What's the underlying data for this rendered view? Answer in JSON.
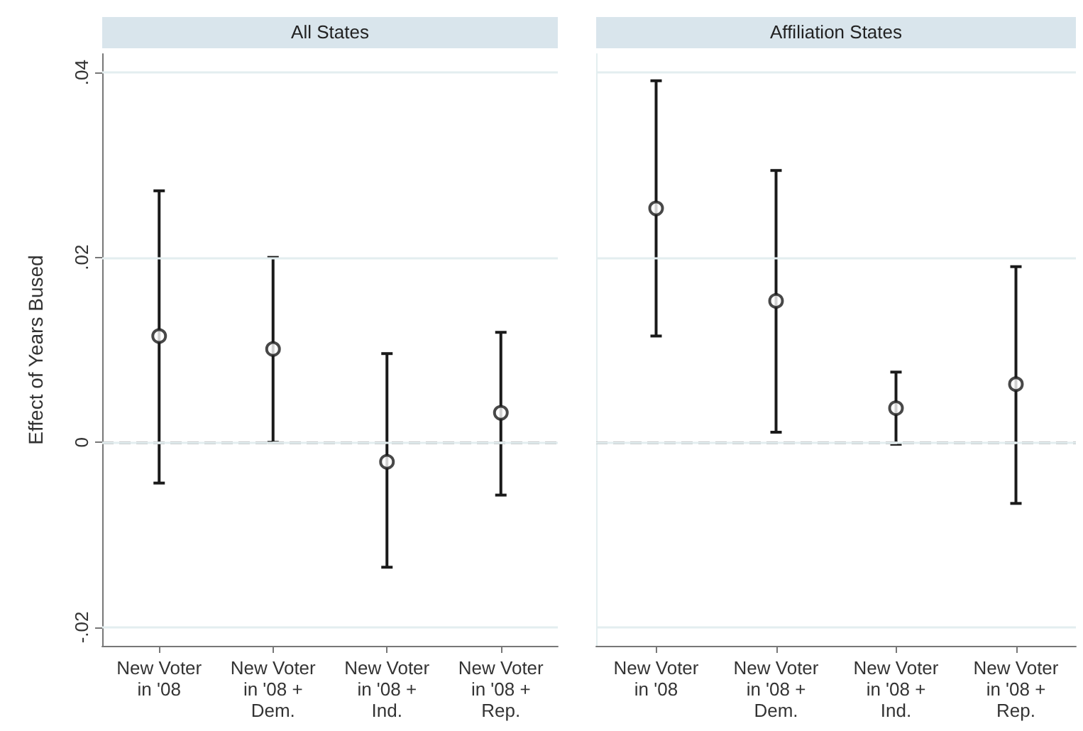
{
  "chart_data": [
    {
      "type": "scatter",
      "title": "All States",
      "ylabel": "Effect of Years Bused",
      "categories": [
        "New Voter\nin '08",
        "New Voter\nin '08 +\nDem.",
        "New Voter\nin '08 +\nInd.",
        "New Voter\nin '08 +\nRep."
      ],
      "series": [
        {
          "color": "#1a1a1a",
          "values": [
            0.0115,
            0.0101,
            -0.0021,
            0.0032
          ],
          "errors": [
            [
              -0.0044,
              0.0272
            ],
            [
              0.0,
              0.02
            ],
            [
              -0.0135,
              0.0096
            ],
            [
              -0.0057,
              0.0119
            ]
          ]
        }
      ],
      "ylim": [
        -0.022,
        0.042
      ],
      "yticks": [
        {
          "value": -0.02,
          "label": "-.02"
        },
        {
          "value": 0,
          "label": "0"
        },
        {
          "value": 0.02,
          "label": ".02"
        },
        {
          "value": 0.04,
          "label": ".04"
        }
      ],
      "grid": "y",
      "marker": "circle",
      "ref_lines": [
        {
          "axis": "y",
          "value": 0,
          "color": "#a6a6a6",
          "line_style": "dashed"
        }
      ]
    },
    {
      "type": "scatter",
      "title": "Affiliation States",
      "categories": [
        "New Voter\nin '08",
        "New Voter\nin '08 +\nDem.",
        "New Voter\nin '08 +\nInd.",
        "New Voter\nin '08 +\nRep."
      ],
      "series": [
        {
          "color": "#1a1a1a",
          "values": [
            0.0253,
            0.0153,
            0.0037,
            0.0063
          ],
          "errors": [
            [
              0.0115,
              0.0391
            ],
            [
              0.0011,
              0.0294
            ],
            [
              -0.0002,
              0.0076
            ],
            [
              -0.0066,
              0.019
            ]
          ]
        }
      ],
      "ylim": [
        -0.022,
        0.042
      ],
      "yticks": [
        {
          "value": -0.02,
          "label": null
        },
        {
          "value": 0,
          "label": null
        },
        {
          "value": 0.02,
          "label": null
        },
        {
          "value": 0.04,
          "label": null
        }
      ],
      "grid": "y",
      "marker": "circle",
      "tick_labels": "x",
      "ref_lines": [
        {
          "axis": "y",
          "value": 0,
          "color": "#a6a6a6",
          "line_style": "dashed"
        }
      ]
    }
  ]
}
